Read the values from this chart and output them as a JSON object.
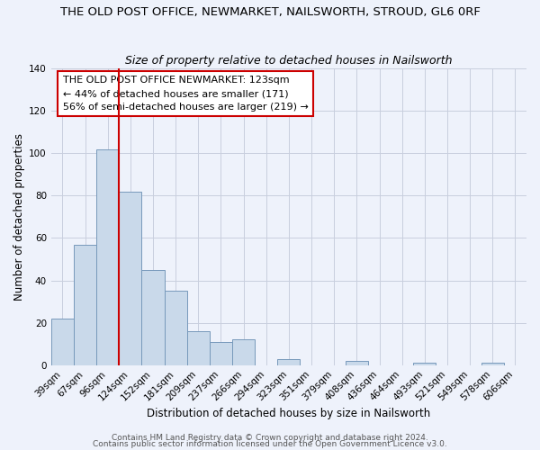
{
  "title": "THE OLD POST OFFICE, NEWMARKET, NAILSWORTH, STROUD, GL6 0RF",
  "subtitle": "Size of property relative to detached houses in Nailsworth",
  "xlabel": "Distribution of detached houses by size in Nailsworth",
  "ylabel": "Number of detached properties",
  "categories": [
    "39sqm",
    "67sqm",
    "96sqm",
    "124sqm",
    "152sqm",
    "181sqm",
    "209sqm",
    "237sqm",
    "266sqm",
    "294sqm",
    "323sqm",
    "351sqm",
    "379sqm",
    "408sqm",
    "436sqm",
    "464sqm",
    "493sqm",
    "521sqm",
    "549sqm",
    "578sqm",
    "606sqm"
  ],
  "values": [
    22,
    57,
    102,
    82,
    45,
    35,
    16,
    11,
    12,
    0,
    3,
    0,
    0,
    2,
    0,
    0,
    1,
    0,
    0,
    1,
    0
  ],
  "bar_color": "#c9d9ea",
  "bar_edge_color": "#7799bb",
  "vline_color": "#cc0000",
  "vline_x_index": 3,
  "ylim": [
    0,
    140
  ],
  "yticks": [
    0,
    20,
    40,
    60,
    80,
    100,
    120,
    140
  ],
  "annotation_line1": "THE OLD POST OFFICE NEWMARKET: 123sqm",
  "annotation_line2": "← 44% of detached houses are smaller (171)",
  "annotation_line3": "56% of semi-detached houses are larger (219) →",
  "annotation_box_color": "#ffffff",
  "annotation_box_edge": "#cc0000",
  "footer1": "Contains HM Land Registry data © Crown copyright and database right 2024.",
  "footer2": "Contains public sector information licensed under the Open Government Licence v3.0.",
  "background_color": "#eef2fb",
  "grid_color": "#c8cede",
  "title_fontsize": 9.5,
  "subtitle_fontsize": 9,
  "axis_label_fontsize": 8.5,
  "tick_fontsize": 7.5,
  "annotation_fontsize": 8,
  "footer_fontsize": 6.5
}
